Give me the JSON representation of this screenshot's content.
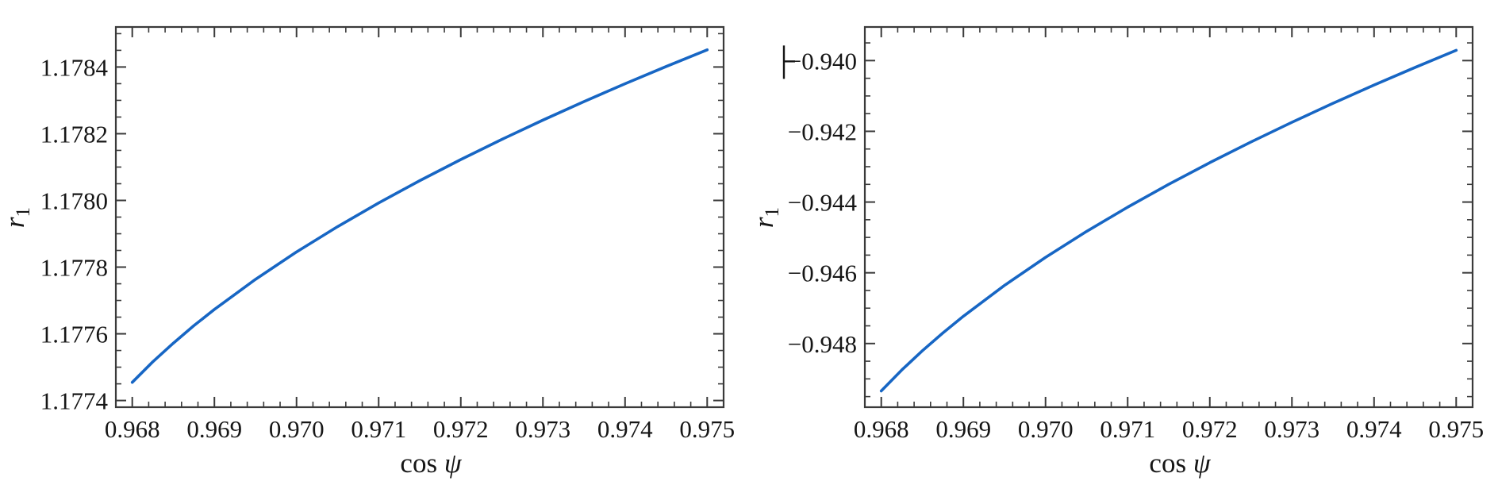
{
  "figure": {
    "background": "#ffffff",
    "panel_count": 2
  },
  "chart_data": [
    {
      "id": "left",
      "type": "line",
      "title": "",
      "xlabel": {
        "text": "cos ψ",
        "roman": "cos",
        "italic": "ψ"
      },
      "ylabel": {
        "text": "r1",
        "italic": "r",
        "sub": "1"
      },
      "legend": "none",
      "grid": "off",
      "frame": "on",
      "line_color": "#1766c4",
      "frame_color": "#3a3a3a",
      "text_color": "#161616",
      "xlim": [
        0.9678,
        0.9752
      ],
      "ylim": [
        1.17738,
        1.17852
      ],
      "xticks": [
        "0.968",
        "0.969",
        "0.970",
        "0.971",
        "0.972",
        "0.973",
        "0.974",
        "0.975"
      ],
      "xtick_values": [
        0.968,
        0.969,
        0.97,
        0.971,
        0.972,
        0.973,
        0.974,
        0.975
      ],
      "yticks": [
        "1.1774",
        "1.1776",
        "1.1778",
        "1.1780",
        "1.1782",
        "1.1784"
      ],
      "ytick_values": [
        1.1774,
        1.1776,
        1.1778,
        1.178,
        1.1782,
        1.1784
      ],
      "x_minor_step": 0.0002,
      "y_minor_step": 5e-05,
      "series": [
        {
          "name": "r1 vs cos psi",
          "x": [
            0.968,
            0.96825,
            0.9685,
            0.96875,
            0.969,
            0.9695,
            0.97,
            0.9705,
            0.971,
            0.9715,
            0.972,
            0.9725,
            0.973,
            0.9735,
            0.974,
            0.9745,
            0.975
          ],
          "y": [
            1.1774545,
            1.1775161,
            1.177572,
            1.1776245,
            1.1776731,
            1.1777633,
            1.1778455,
            1.1779214,
            1.1779924,
            1.1780592,
            1.1781226,
            1.178183,
            1.1782408,
            1.1782963,
            1.1783498,
            1.1784015,
            1.1784515
          ]
        }
      ]
    },
    {
      "id": "right",
      "type": "line",
      "title": "",
      "xlabel": {
        "text": "cos ψ",
        "roman": "cos",
        "italic": "ψ"
      },
      "ylabel": {
        "text": "r1",
        "italic": "r",
        "sub": "1"
      },
      "legend": "none",
      "grid": "off",
      "frame": "on",
      "line_color": "#1766c4",
      "frame_color": "#3a3a3a",
      "text_color": "#161616",
      "xlim": [
        0.9678,
        0.9752
      ],
      "ylim": [
        -0.9498,
        -0.93905
      ],
      "xticks": [
        "0.968",
        "0.969",
        "0.970",
        "0.971",
        "0.972",
        "0.973",
        "0.974",
        "0.975"
      ],
      "xtick_values": [
        0.968,
        0.969,
        0.97,
        0.971,
        0.972,
        0.973,
        0.974,
        0.975
      ],
      "yticks": [
        "−0.948",
        "−0.946",
        "−0.944",
        "−0.942",
        "−0.940"
      ],
      "ytick_values": [
        -0.948,
        -0.946,
        -0.944,
        -0.942,
        -0.94
      ],
      "x_minor_step": 0.0002,
      "y_minor_step": 0.0005,
      "artifact": {
        "description": "stray vertical tick fragment before top y tick label",
        "anchor_tick_index": 4
      },
      "series": [
        {
          "name": "r1 vs cos psi",
          "x": [
            0.968,
            0.96825,
            0.9685,
            0.96875,
            0.969,
            0.9695,
            0.97,
            0.9705,
            0.971,
            0.9715,
            0.972,
            0.9725,
            0.973,
            0.9735,
            0.974,
            0.9745,
            0.975
          ],
          "y": [
            -0.9493406,
            -0.9487479,
            -0.9482049,
            -0.9477007,
            -0.9472278,
            -0.9463567,
            -0.9455632,
            -0.9448297,
            -0.9441442,
            -0.9434985,
            -0.9428862,
            -0.9423028,
            -0.9417444,
            -0.9412082,
            -0.9406916,
            -0.9401926,
            -0.9397096
          ]
        }
      ]
    }
  ]
}
